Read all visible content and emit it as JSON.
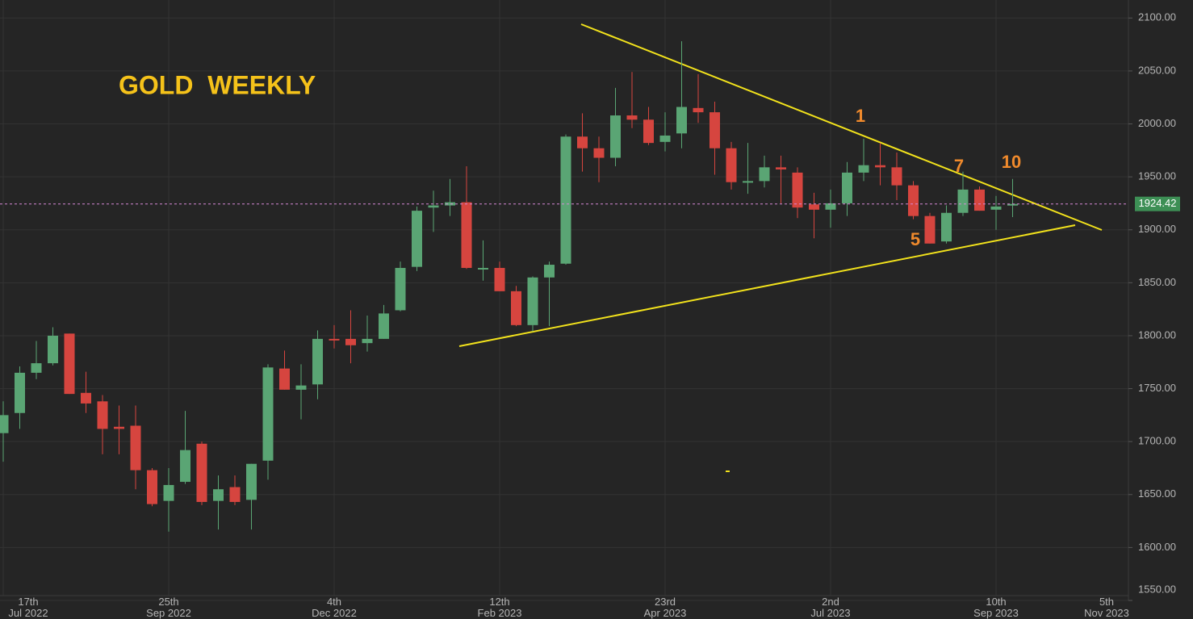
{
  "chart_data": {
    "type": "candlestick",
    "title": "GOLD  WEEKLY",
    "annotations": [
      "1",
      "7",
      "10",
      "5"
    ],
    "categories": [
      "17th\nJul 2022",
      null,
      null,
      null,
      null,
      null,
      null,
      null,
      null,
      null,
      "25th\nSep 2022",
      null,
      null,
      null,
      null,
      null,
      null,
      null,
      null,
      null,
      "4th\nDec 2022",
      null,
      null,
      null,
      null,
      null,
      null,
      null,
      null,
      null,
      "12th\nFeb 2023",
      null,
      null,
      null,
      null,
      null,
      null,
      null,
      null,
      null,
      "23rd\nApr 2023",
      null,
      null,
      null,
      null,
      null,
      null,
      null,
      null,
      null,
      "2nd\nJul 2023",
      null,
      null,
      null,
      null,
      null,
      null,
      null,
      null,
      null,
      "10th\nSep 2023",
      null,
      null,
      null,
      null,
      null,
      null,
      null,
      "5th\nNov 2023"
    ],
    "open": [
      1708,
      1727,
      1765,
      1774,
      1802,
      1746,
      1738,
      1714,
      1715,
      1673,
      1644,
      1662,
      1698,
      1644,
      1657,
      1645,
      1682,
      1769,
      1749,
      1754,
      1797,
      1797,
      1793,
      1797,
      1824,
      1865,
      1921,
      1923,
      1926,
      1863,
      1864,
      1842,
      1810,
      1855,
      1868,
      1988,
      1977,
      1968,
      2008,
      2004,
      1983,
      1991,
      2015,
      2011,
      1977,
      1945,
      1946,
      1959,
      1954,
      1924,
      1919,
      1925,
      1954,
      1961,
      1959,
      1942,
      1913,
      1889,
      1916,
      1938,
      1919,
      1923,
      null,
      null,
      null,
      null,
      null,
      null,
      null
    ],
    "high": [
      1738,
      1771,
      1795,
      1808,
      1802,
      1766,
      1744,
      1734,
      1734,
      1675,
      1675,
      1729,
      1700,
      1668,
      1668,
      1679,
      1773,
      1786,
      1773,
      1805,
      1810,
      1824,
      1819,
      1829,
      1870,
      1922,
      1937,
      1948,
      1960,
      1890,
      1870,
      1847,
      1856,
      1870,
      1990,
      2010,
      1988,
      2034,
      2049,
      2016,
      2011,
      2078,
      2047,
      2021,
      1983,
      1982,
      1970,
      1970,
      1959,
      1935,
      1938,
      1964,
      1986,
      1982,
      1973,
      1946,
      1916,
      1923,
      1955,
      1941,
      1932,
      1948,
      null,
      null,
      null,
      null,
      null,
      null,
      null
    ],
    "low": [
      1681,
      1712,
      1759,
      1772,
      1745,
      1727,
      1688,
      1688,
      1655,
      1639,
      1615,
      1660,
      1640,
      1617,
      1640,
      1617,
      1664,
      1749,
      1721,
      1740,
      1788,
      1774,
      1785,
      1797,
      1823,
      1861,
      1898,
      1913,
      1863,
      1852,
      1842,
      1809,
      1804,
      1809,
      1867,
      1955,
      1945,
      1960,
      1996,
      1980,
      1974,
      1977,
      2001,
      1952,
      1938,
      1934,
      1940,
      1925,
      1911,
      1892,
      1902,
      1913,
      1946,
      1942,
      1928,
      1910,
      1887,
      1887,
      1913,
      1918,
      1900,
      1912,
      null,
      null,
      null,
      null,
      null,
      null,
      null
    ],
    "close": [
      1725,
      1765,
      1774,
      1800,
      1745,
      1736,
      1712,
      1712,
      1673,
      1641,
      1659,
      1692,
      1643,
      1655,
      1643,
      1679,
      1770,
      1749,
      1753,
      1797,
      1796,
      1791,
      1797,
      1821,
      1864,
      1918,
      1923,
      1926,
      1864,
      1864,
      1842,
      1810,
      1855,
      1867,
      1988,
      1977,
      1968,
      2008,
      2004,
      1982,
      1989,
      2016,
      2011,
      1977,
      1945,
      1946,
      1959,
      1957,
      1921,
      1919,
      1925,
      1954,
      1961,
      1959,
      1942,
      1913,
      1887,
      1916,
      1938,
      1918,
      1922,
      1924.42,
      null,
      null,
      null,
      null,
      null,
      null,
      null
    ],
    "up_color": "#5aa574",
    "down_color": "#d6453f",
    "last_price": 1924.42,
    "ylim": [
      1550,
      2117
    ],
    "yticks": [
      {
        "value": 1550,
        "label": "1550.00"
      },
      {
        "value": 1600,
        "label": "1600.00"
      },
      {
        "value": 1650,
        "label": "1650.00"
      },
      {
        "value": 1700,
        "label": "1700.00"
      },
      {
        "value": 1750,
        "label": "1750.00"
      },
      {
        "value": 1800,
        "label": "1800.00"
      },
      {
        "value": 1850,
        "label": "1850.00"
      },
      {
        "value": 1900,
        "label": "1900.00"
      },
      {
        "value": 1950,
        "label": "1950.00"
      },
      {
        "value": 2000,
        "label": "2000.00"
      },
      {
        "value": 2050,
        "label": "2050.00"
      },
      {
        "value": 2100,
        "label": "2100.00"
      }
    ],
    "grid": true
  }
}
